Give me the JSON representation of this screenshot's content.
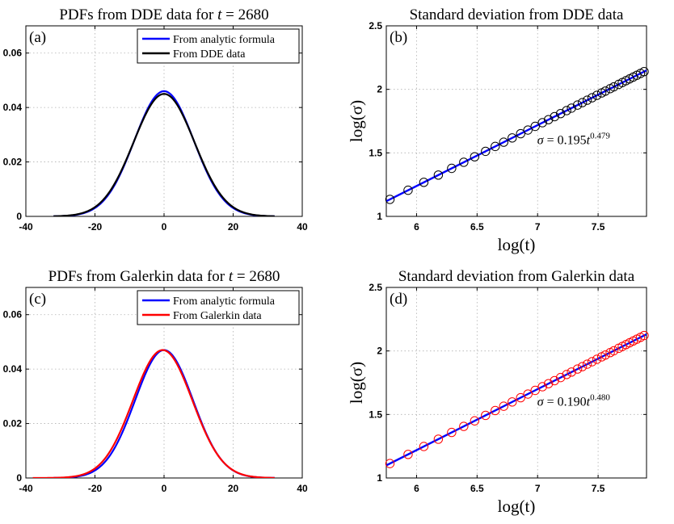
{
  "chart_data": [
    {
      "id": "a",
      "type": "line",
      "panel_label": "(a)",
      "title": "PDFs from DDE data for t = 2680",
      "title_prefix": "PDFs from DDE data for ",
      "title_var": "t",
      "title_suffix": " = 2680",
      "xlim": [
        -40,
        40
      ],
      "ylim": [
        0,
        0.07
      ],
      "xticks": [
        -40,
        -20,
        0,
        20,
        40
      ],
      "yticks": [
        0,
        0.02,
        0.04,
        0.06
      ],
      "xtick_labels": [
        "-40",
        "-20",
        "0",
        "20",
        "40"
      ],
      "ytick_labels": [
        "0",
        "0.02",
        "0.04",
        "0.06"
      ],
      "legend_position": "top-right",
      "series": [
        {
          "name": "From analytic formula",
          "color": "#0000ff",
          "kind": "gaussian",
          "peak": 0.046,
          "sigma": 8.6,
          "mu": 0,
          "x_range": [
            -32,
            32
          ]
        },
        {
          "name": "From DDE data",
          "color": "#000000",
          "kind": "gaussian",
          "peak": 0.045,
          "sigma": 8.8,
          "mu": 0,
          "x_range": [
            -32,
            32
          ]
        }
      ]
    },
    {
      "id": "b",
      "type": "scatter",
      "panel_label": "(b)",
      "title": "Standard deviation from DDE data",
      "xlabel": "log(t)",
      "ylabel": "log(σ)",
      "xlim": [
        5.75,
        7.9
      ],
      "ylim": [
        1,
        2.5
      ],
      "xticks": [
        6,
        6.5,
        7,
        7.5
      ],
      "yticks": [
        1,
        1.5,
        2,
        2.5
      ],
      "xtick_labels": [
        "6",
        "6.5",
        "7",
        "7.5"
      ],
      "ytick_labels": [
        "1",
        "1.5",
        "2",
        "2.5"
      ],
      "annotation": "σ = 0.195t^0.479",
      "ann_sigma": "σ",
      "ann_mid": " = 0.195",
      "ann_t": "t",
      "ann_exp": "0.479",
      "fit": {
        "coef": 0.195,
        "exponent": 0.479,
        "color": "#0000ff"
      },
      "marker_color": "#000000",
      "points_x": [
        5.78,
        5.93,
        6.06,
        6.18,
        6.29,
        6.39,
        6.48,
        6.57,
        6.65,
        6.72,
        6.79,
        6.86,
        6.92,
        6.98,
        7.04,
        7.09,
        7.14,
        7.19,
        7.24,
        7.28,
        7.33,
        7.37,
        7.41,
        7.45,
        7.49,
        7.53,
        7.56,
        7.6,
        7.63,
        7.67,
        7.7,
        7.73,
        7.76,
        7.79,
        7.82,
        7.85,
        7.88
      ]
    },
    {
      "id": "c",
      "type": "line",
      "panel_label": "(c)",
      "title": "PDFs from Galerkin data for t = 2680",
      "title_prefix": "PDFs from Galerkin data for ",
      "title_var": "t",
      "title_suffix": " = 2680",
      "xlim": [
        -40,
        40
      ],
      "ylim": [
        0,
        0.07
      ],
      "xticks": [
        -40,
        -20,
        0,
        20,
        40
      ],
      "yticks": [
        0,
        0.02,
        0.04,
        0.06
      ],
      "xtick_labels": [
        "-40",
        "-20",
        "0",
        "20",
        "40"
      ],
      "ytick_labels": [
        "0",
        "0.02",
        "0.04",
        "0.06"
      ],
      "legend_position": "top-right",
      "series": [
        {
          "name": "From analytic formula",
          "color": "#0000ff",
          "kind": "gaussian",
          "peak": 0.047,
          "sigma": 8.4,
          "mu": 0,
          "x_range": [
            -32,
            32
          ]
        },
        {
          "name": "From Galerkin data",
          "color": "#ff0000",
          "kind": "gaussian",
          "peak": 0.047,
          "sigma": 8.6,
          "mu": -0.4,
          "x_range": [
            -38,
            32
          ]
        }
      ]
    },
    {
      "id": "d",
      "type": "scatter",
      "panel_label": "(d)",
      "title": "Standard deviation from Galerkin data",
      "xlabel": "log(t)",
      "ylabel": "log(σ)",
      "xlim": [
        5.75,
        7.9
      ],
      "ylim": [
        1,
        2.5
      ],
      "xticks": [
        6,
        6.5,
        7,
        7.5
      ],
      "yticks": [
        1,
        1.5,
        2,
        2.5
      ],
      "xtick_labels": [
        "6",
        "6.5",
        "7",
        "7.5"
      ],
      "ytick_labels": [
        "1",
        "1.5",
        "2",
        "2.5"
      ],
      "annotation": "σ = 0.190t^0.480",
      "ann_sigma": "σ",
      "ann_mid": " = 0.190",
      "ann_t": "t",
      "ann_exp": "0.480",
      "fit": {
        "coef": 0.19,
        "exponent": 0.48,
        "color": "#0000ff"
      },
      "marker_color": "#ff0000",
      "points_x": [
        5.78,
        5.93,
        6.06,
        6.18,
        6.29,
        6.39,
        6.48,
        6.57,
        6.65,
        6.72,
        6.79,
        6.86,
        6.92,
        6.98,
        7.04,
        7.09,
        7.14,
        7.19,
        7.24,
        7.28,
        7.33,
        7.37,
        7.41,
        7.45,
        7.49,
        7.53,
        7.56,
        7.6,
        7.63,
        7.67,
        7.7,
        7.73,
        7.76,
        7.79,
        7.82,
        7.85,
        7.88
      ]
    }
  ]
}
